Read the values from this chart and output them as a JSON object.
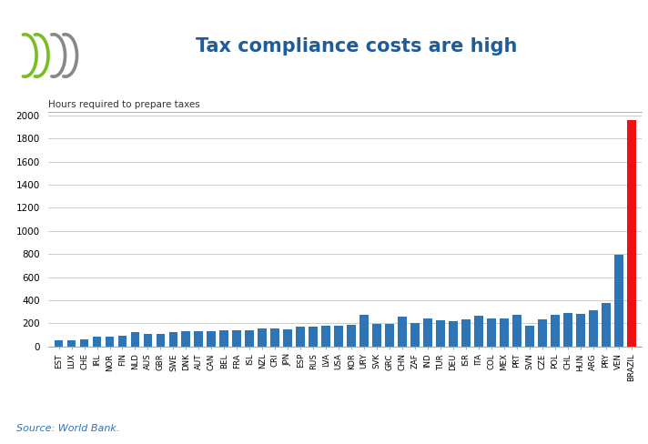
{
  "title": "Tax compliance costs are high",
  "ylabel": "Hours required to prepare taxes",
  "source": "Source: World Bank.",
  "title_color": "#1F5C99",
  "bar_color": "#2E75B6",
  "highlight_color": "#EE1111",
  "background_color": "#FFFFFF",
  "ylim": [
    0,
    2000
  ],
  "yticks": [
    0,
    200,
    400,
    600,
    800,
    1000,
    1200,
    1400,
    1600,
    1800,
    2000
  ],
  "categories": [
    "EST",
    "LUX",
    "CHE",
    "IRL",
    "NOR",
    "FIN",
    "NLD",
    "AUS",
    "GBR",
    "SWE",
    "DNK",
    "AUT",
    "CAN",
    "BEL",
    "FRA",
    "ISL",
    "NZL",
    "CRI",
    "JPN",
    "ESP",
    "RUS",
    "LVA",
    "USA",
    "KOR",
    "URY",
    "SVK",
    "GRC",
    "CHN",
    "ZAF",
    "IND",
    "TUR",
    "DEU",
    "ISR",
    "ITA",
    "COL",
    "MEX",
    "PRT",
    "SVN",
    "CZE",
    "POL",
    "CHL",
    "HUN",
    "ARG",
    "PRY",
    "VEN",
    "BRAZIL"
  ],
  "values": [
    50,
    55,
    63,
    82,
    83,
    93,
    123,
    105,
    110,
    122,
    130,
    131,
    131,
    136,
    137,
    140,
    152,
    153,
    150,
    167,
    168,
    175,
    175,
    187,
    270,
    192,
    193,
    261,
    200,
    243,
    223,
    218,
    235,
    269,
    239,
    243,
    275,
    179,
    234,
    271,
    291,
    277,
    312,
    378,
    792,
    1958
  ],
  "highlight_index": 45,
  "logo_green": "#78BE20",
  "logo_gray": "#888888"
}
